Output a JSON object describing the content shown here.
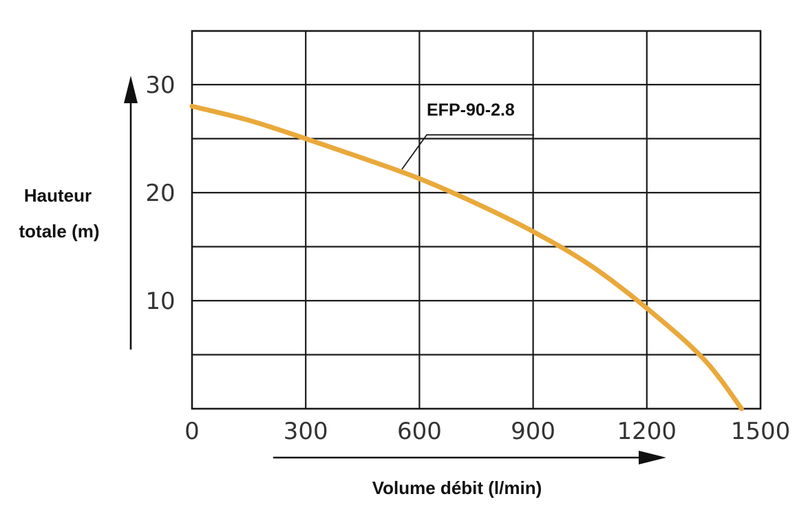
{
  "chart_data": {
    "type": "line",
    "title": "",
    "xlabel": "Volume débit (l/min)",
    "ylabel_lines": [
      "Hauteur",
      "totale (m)"
    ],
    "xlim": [
      0,
      1500
    ],
    "ylim": [
      0,
      35
    ],
    "x_ticks": [
      0,
      300,
      600,
      900,
      1200,
      1500
    ],
    "x_tick_labels": [
      "0",
      "300",
      "600",
      "900",
      "1200",
      "1500"
    ],
    "y_ticks": [
      10,
      20,
      30
    ],
    "y_tick_labels": [
      "10",
      "20",
      "30"
    ],
    "grid": true,
    "series": [
      {
        "name": "EFP-90-2.8",
        "color": "#E9A93B",
        "x": [
          0,
          150,
          300,
          450,
          600,
          750,
          900,
          1050,
          1200,
          1350,
          1450
        ],
        "y": [
          28.0,
          26.7,
          25.0,
          23.2,
          21.3,
          19.0,
          16.4,
          13.3,
          9.3,
          4.6,
          0.0
        ]
      }
    ]
  }
}
